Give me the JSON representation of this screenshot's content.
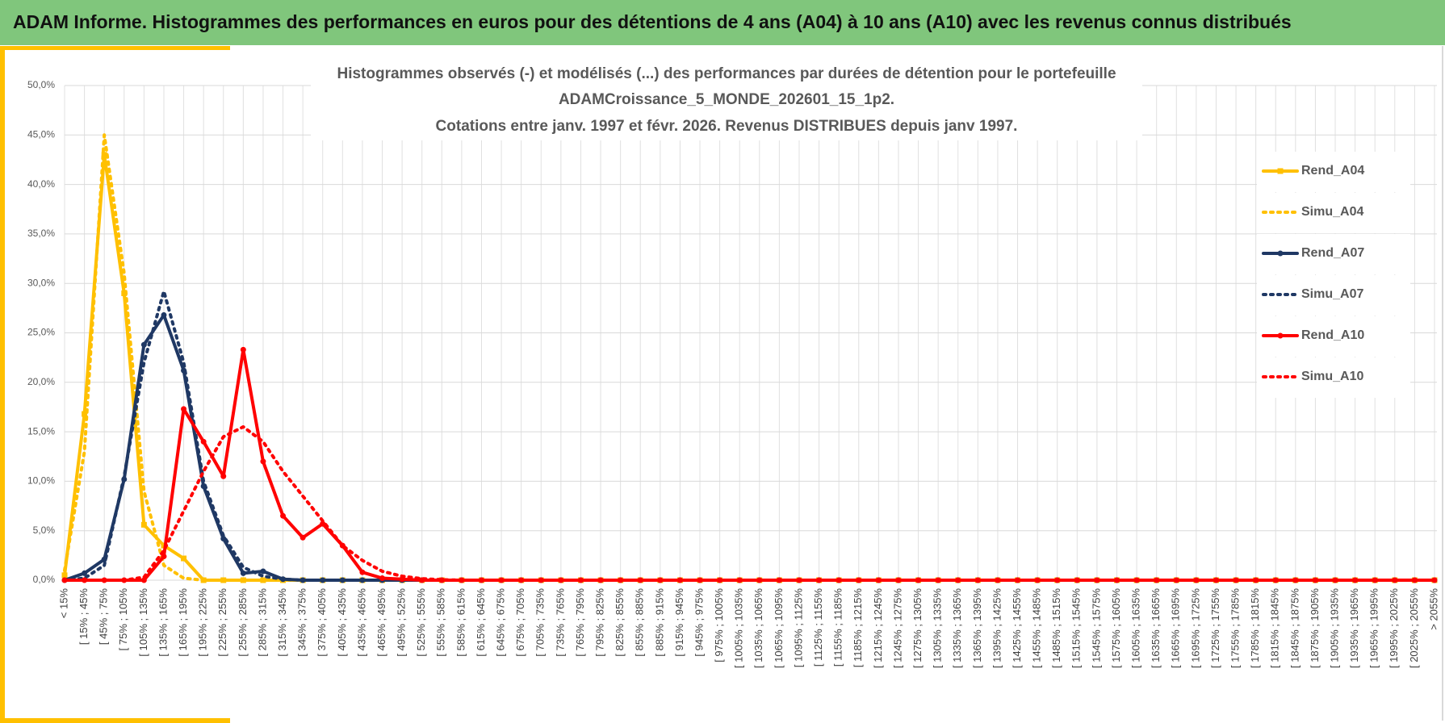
{
  "header": {
    "title": "ADAM Informe. Histogrammes des performances en euros pour des détentions de 4 ans (A04) à 10 ans (A10) avec les revenus connus distribués"
  },
  "chart_data": {
    "type": "line",
    "title": "Histogrammes observés (-) et modélisés (...) des performances par durées de détention pour le portefeuille",
    "subtitle": [
      "ADAMCroissance_5_MONDE_202601_15_1p2.",
      "Cotations entre janv. 1997 et févr. 2026. Revenus DISTRIBUES depuis janv 1997."
    ],
    "categories": [
      "< 15%",
      "[ 15% ; 45%",
      "[ 45% ; 75%",
      "[ 75% ; 105%",
      "[ 105% ; 135%",
      "[ 135% ; 165%",
      "[ 165% ; 195%",
      "[ 195% ; 225%",
      "[ 225% ; 255%",
      "[ 255% ; 285%",
      "[ 285% ; 315%",
      "[ 315% ; 345%",
      "[ 345% ; 375%",
      "[ 375% ; 405%",
      "[ 405% ; 435%",
      "[ 435% ; 465%",
      "[ 465% ; 495%",
      "[ 495% ; 525%",
      "[ 525% ; 555%",
      "[ 555% ; 585%",
      "[ 585% ; 615%",
      "[ 615% ; 645%",
      "[ 645% ; 675%",
      "[ 675% ; 705%",
      "[ 705% ; 735%",
      "[ 735% ; 765%",
      "[ 765% ; 795%",
      "[ 795% ; 825%",
      "[ 825% ; 855%",
      "[ 855% ; 885%",
      "[ 885% ; 915%",
      "[ 915% ; 945%",
      "[ 945% ; 975%",
      "[ 975% ; 1005%",
      "[ 1005% ; 1035%",
      "[ 1035% ; 1065%",
      "[ 1065% ; 1095%",
      "[ 1095% ; 1125%",
      "[ 1125% ; 1155%",
      "[ 1155% ; 1185%",
      "[ 1185% ; 1215%",
      "[ 1215% ; 1245%",
      "[ 1245% ; 1275%",
      "[ 1275% ; 1305%",
      "[ 1305% ; 1335%",
      "[ 1335% ; 1365%",
      "[ 1365% ; 1395%",
      "[ 1395% ; 1425%",
      "[ 1425% ; 1455%",
      "[ 1455% ; 1485%",
      "[ 1485% ; 1515%",
      "[ 1515% ; 1545%",
      "[ 1545% ; 1575%",
      "[ 1575% ; 1605%",
      "[ 1605% ; 1635%",
      "[ 1635% ; 1665%",
      "[ 1665% ; 1695%",
      "[ 1695% ; 1725%",
      "[ 1725% ; 1755%",
      "[ 1755% ; 1785%",
      "[ 1785% ; 1815%",
      "[ 1815% ; 1845%",
      "[ 1845% ; 1875%",
      "[ 1875% ; 1905%",
      "[ 1905% ; 1935%",
      "[ 1935% ; 1965%",
      "[ 1965% ; 1995%",
      "[ 1995% ; 2025%",
      "[ 2025% ; 2055%",
      "> 2055%"
    ],
    "series": [
      {
        "name": "Rend_A04",
        "color": "#ffc000",
        "style": "solid",
        "marker": "square",
        "values": [
          0.5,
          16.8,
          43,
          29,
          5.6,
          3.5,
          2.2,
          0,
          0,
          0,
          0,
          0,
          0,
          0,
          0,
          0,
          0,
          0,
          0,
          0,
          0,
          0,
          0,
          0,
          0,
          0,
          0,
          0,
          0,
          0,
          0,
          0,
          0,
          0,
          0,
          0,
          0,
          0,
          0,
          0,
          0,
          0,
          0,
          0,
          0,
          0,
          0,
          0,
          0,
          0,
          0,
          0,
          0,
          0,
          0,
          0,
          0,
          0,
          0,
          0,
          0,
          0,
          0,
          0,
          0,
          0,
          0,
          0,
          0,
          0
        ]
      },
      {
        "name": "Simu_A04",
        "color": "#ffc000",
        "style": "dotted",
        "values": [
          1,
          13,
          45,
          31,
          9,
          1.5,
          0.2,
          0,
          0,
          0,
          0,
          0,
          0,
          0,
          0,
          0,
          0,
          0,
          0,
          0,
          0,
          0,
          0,
          0,
          0,
          0,
          0,
          0,
          0,
          0,
          0,
          0,
          0,
          0,
          0,
          0,
          0,
          0,
          0,
          0,
          0,
          0,
          0,
          0,
          0,
          0,
          0,
          0,
          0,
          0,
          0,
          0,
          0,
          0,
          0,
          0,
          0,
          0,
          0,
          0,
          0,
          0,
          0,
          0,
          0,
          0,
          0,
          0,
          0,
          0
        ]
      },
      {
        "name": "Rend_A07",
        "color": "#1f3864",
        "style": "solid",
        "marker": "circle",
        "values": [
          0,
          0.7,
          2.1,
          10.2,
          23.8,
          26.8,
          21.2,
          9.5,
          4.2,
          0.7,
          0.9,
          0.1,
          0,
          0,
          0,
          0,
          0,
          0,
          0,
          0,
          0,
          0,
          0,
          0,
          0,
          0,
          0,
          0,
          0,
          0,
          0,
          0,
          0,
          0,
          0,
          0,
          0,
          0,
          0,
          0,
          0,
          0,
          0,
          0,
          0,
          0,
          0,
          0,
          0,
          0,
          0,
          0,
          0,
          0,
          0,
          0,
          0,
          0,
          0,
          0,
          0,
          0,
          0,
          0,
          0,
          0,
          0,
          0,
          0,
          0
        ]
      },
      {
        "name": "Simu_A07",
        "color": "#1f3864",
        "style": "dotted",
        "values": [
          0,
          0.2,
          1.5,
          10.5,
          22,
          29.2,
          22,
          10,
          4.5,
          1.3,
          0.4,
          0.1,
          0,
          0,
          0,
          0,
          0,
          0,
          0,
          0,
          0,
          0,
          0,
          0,
          0,
          0,
          0,
          0,
          0,
          0,
          0,
          0,
          0,
          0,
          0,
          0,
          0,
          0,
          0,
          0,
          0,
          0,
          0,
          0,
          0,
          0,
          0,
          0,
          0,
          0,
          0,
          0,
          0,
          0,
          0,
          0,
          0,
          0,
          0,
          0,
          0,
          0,
          0,
          0,
          0,
          0,
          0,
          0,
          0,
          0
        ]
      },
      {
        "name": "Rend_A10",
        "color": "#ff0000",
        "style": "solid",
        "marker": "circle",
        "values": [
          0,
          0,
          0,
          0,
          0,
          2.4,
          17.3,
          14,
          10.5,
          23.3,
          12,
          6.5,
          4.3,
          5.7,
          3.5,
          0.8,
          0.2,
          0.1,
          0,
          0,
          0,
          0,
          0,
          0,
          0,
          0,
          0,
          0,
          0,
          0,
          0,
          0,
          0,
          0,
          0,
          0,
          0,
          0,
          0,
          0,
          0,
          0,
          0,
          0,
          0,
          0,
          0,
          0,
          0,
          0,
          0,
          0,
          0,
          0,
          0,
          0,
          0,
          0,
          0,
          0,
          0,
          0,
          0,
          0,
          0,
          0,
          0,
          0,
          0,
          0
        ]
      },
      {
        "name": "Simu_A10",
        "color": "#ff0000",
        "style": "dotted",
        "values": [
          0,
          0,
          0,
          0,
          0.3,
          3,
          7,
          11,
          14.5,
          15.5,
          14,
          11,
          8.5,
          6,
          3.5,
          2,
          0.9,
          0.4,
          0.15,
          0.05,
          0,
          0,
          0,
          0,
          0,
          0,
          0,
          0,
          0,
          0,
          0,
          0,
          0,
          0,
          0,
          0,
          0,
          0,
          0,
          0,
          0,
          0,
          0,
          0,
          0,
          0,
          0,
          0,
          0,
          0,
          0,
          0,
          0,
          0,
          0,
          0,
          0,
          0,
          0,
          0,
          0,
          0,
          0,
          0,
          0,
          0,
          0,
          0,
          0,
          0
        ]
      }
    ],
    "ylim": [
      0,
      50
    ],
    "yticks": [
      {
        "value": 0,
        "label": "0,0%"
      },
      {
        "value": 5,
        "label": "5,0%"
      },
      {
        "value": 10,
        "label": "10,0%"
      },
      {
        "value": 15,
        "label": "15,0%"
      },
      {
        "value": 20,
        "label": "20,0%"
      },
      {
        "value": 25,
        "label": "25,0%"
      },
      {
        "value": 30,
        "label": "30,0%"
      },
      {
        "value": 35,
        "label": "35,0%"
      },
      {
        "value": 40,
        "label": "40,0%"
      },
      {
        "value": 45,
        "label": "45,0%"
      },
      {
        "value": 50,
        "label": "50,0%"
      }
    ],
    "grid": true,
    "legend": "right"
  }
}
